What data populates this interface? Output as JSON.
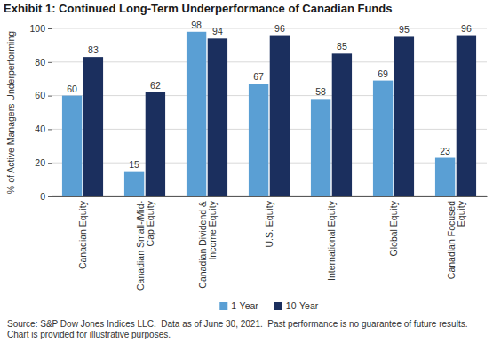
{
  "chart_data": {
    "type": "bar",
    "title": "Exhibit 1: Continued Long-Term Underperformance of Canadian Funds",
    "y_label": "% of Active Managers Underperforming",
    "categories": [
      "Canadian Equity",
      "Canadian Small-/Mid-Cap Equity",
      "Canadian Dividend & Income Equity",
      "U.S. Equity",
      "International Equity",
      "Global Equity",
      "Canadian Focused Equity"
    ],
    "series": [
      {
        "name": "1-Year",
        "color": "#5a9fd4",
        "values": [
          60,
          15,
          98,
          67,
          58,
          69,
          23
        ]
      },
      {
        "name": "10-Year",
        "color": "#1b2f5e",
        "values": [
          83,
          62,
          94,
          96,
          85,
          95,
          96
        ]
      }
    ],
    "ylim": [
      0,
      100
    ],
    "yticks": [
      0,
      20,
      40,
      60,
      80,
      100
    ],
    "grid": true,
    "legend": "bottom",
    "data_labels": true,
    "source": "Source: S&P Dow Jones Indices LLC.  Data as of June 30, 2021.  Past performance is no guarantee of future results.  Chart is provided for illustrative purposes."
  }
}
